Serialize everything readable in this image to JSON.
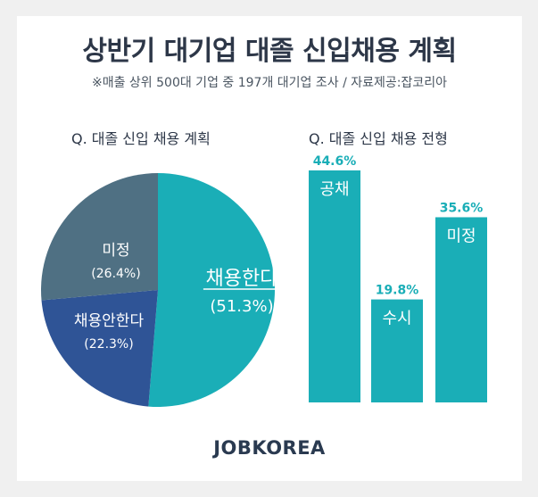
{
  "title": "상반기 대기업 대졸 신입채용 계획",
  "subtitle": "※매출 상위 500대 기업 중 197개 대기업 조사 / 자료제공:잡코리아",
  "logo": "JOBKOREA",
  "colors": {
    "teal": "#1aaeb7",
    "navy": "#2f5496",
    "slate": "#4f7083"
  },
  "chart_data": [
    {
      "type": "pie",
      "title": "Q. 대졸 신입 채용 계획",
      "slices": [
        {
          "label": "채용한다",
          "value": 51.3,
          "value_label": "(51.3%)",
          "color": "#1aaeb7"
        },
        {
          "label": "채용안한다",
          "value": 22.3,
          "value_label": "(22.3%)",
          "color": "#2f5496"
        },
        {
          "label": "미정",
          "value": 26.4,
          "value_label": "(26.4%)",
          "color": "#4f7083"
        }
      ]
    },
    {
      "type": "bar",
      "title": "Q. 대졸 신입 채용 전형",
      "categories": [
        "공채",
        "수시",
        "미정"
      ],
      "values": [
        44.6,
        19.8,
        35.6
      ],
      "value_labels": [
        "44.6%",
        "19.8%",
        "35.6%"
      ],
      "color": "#1aaeb7",
      "ylim": [
        0,
        44.6
      ]
    }
  ]
}
